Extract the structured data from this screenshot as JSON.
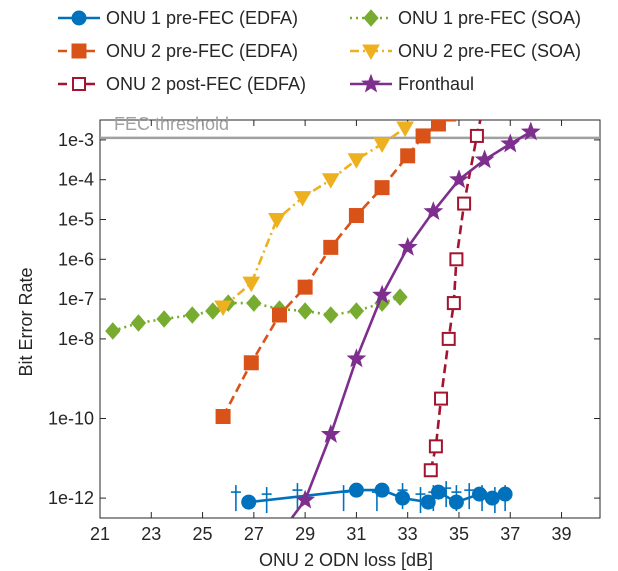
{
  "chart_data": {
    "type": "line",
    "xlabel": "ONU 2 ODN loss [dB]",
    "ylabel": "Bit Error Rate",
    "xlim": [
      21,
      40.5
    ],
    "xticks": [
      21,
      23,
      25,
      27,
      29,
      31,
      33,
      35,
      37,
      39
    ],
    "ylim_log10": [
      -12.5,
      -2.5
    ],
    "yticks": [
      {
        "log": -3,
        "label": "1e-3"
      },
      {
        "log": -4,
        "label": "1e-4"
      },
      {
        "log": -5,
        "label": "1e-5"
      },
      {
        "log": -6,
        "label": "1e-6"
      },
      {
        "log": -7,
        "label": "1e-7"
      },
      {
        "log": -8,
        "label": "1e-8"
      },
      {
        "log": -10,
        "label": "1e-10"
      },
      {
        "log": -12,
        "label": "1e-12"
      }
    ],
    "threshold": {
      "label": "FEC threshold",
      "log10": -2.95,
      "color": "#a0a0a0"
    },
    "legend_placement": "top",
    "series": [
      {
        "name": "ONU 1 pre-FEC (EDFA)",
        "color": "#0072BD",
        "marker": "circle",
        "dash": "solid",
        "x": [
          26.8,
          31.0,
          32.0,
          32.8,
          33.8,
          34.2,
          34.9,
          35.8,
          36.3,
          36.8
        ],
        "log10": [
          -12.1,
          -11.8,
          -11.8,
          -12.0,
          -12.1,
          -11.85,
          -12.1,
          -11.9,
          -12.0,
          -11.9
        ]
      },
      {
        "name": "ONU 1 pre-FEC (SOA)",
        "color": "#77AC30",
        "marker": "diamond",
        "dash": "dotted",
        "x": [
          21.5,
          22.5,
          23.5,
          24.6,
          25.4,
          26.0,
          27.0,
          28.0,
          29.0,
          30.0,
          31.0,
          32.0,
          32.7
        ],
        "log10": [
          -7.8,
          -7.6,
          -7.5,
          -7.4,
          -7.3,
          -7.1,
          -7.1,
          -7.25,
          -7.3,
          -7.4,
          -7.3,
          -7.1,
          -6.95
        ]
      },
      {
        "name": "ONU 2 pre-FEC (EDFA)",
        "color": "#D95319",
        "marker": "square",
        "dash": "dashed",
        "x": [
          25.8,
          26.9,
          28.0,
          29.0,
          30.0,
          31.0,
          32.0,
          33.0,
          33.6,
          34.2,
          34.6,
          35.0
        ],
        "log10": [
          -9.95,
          -8.6,
          -7.4,
          -6.7,
          -5.7,
          -4.9,
          -4.2,
          -3.4,
          -2.9,
          -2.6,
          -2.35,
          -2.1
        ]
      },
      {
        "name": "ONU 2 pre-FEC (SOA)",
        "color": "#EDB120",
        "marker": "triangle-down",
        "dash": "dashdot",
        "x": [
          25.8,
          26.9,
          27.9,
          28.9,
          30.0,
          31.0,
          32.0,
          32.9
        ],
        "log10": [
          -7.2,
          -6.6,
          -5.0,
          -4.45,
          -4.0,
          -3.5,
          -3.1,
          -2.7
        ]
      },
      {
        "name": "ONU 2 post-FEC (EDFA)",
        "color": "#A2142F",
        "marker": "square-open",
        "dash": "dashed",
        "x": [
          33.9,
          34.1,
          34.3,
          34.6,
          34.8,
          34.9,
          35.2,
          35.7,
          36.2
        ],
        "log10": [
          -11.3,
          -10.7,
          -9.5,
          -8.0,
          -7.1,
          -6.0,
          -4.6,
          -2.9,
          -1.4
        ]
      },
      {
        "name": "Fronthaul",
        "color": "#7E2F8E",
        "marker": "star",
        "dash": "solid",
        "x": [
          27.9,
          29.0,
          30.0,
          31.0,
          32.0,
          33.0,
          34.0,
          35.0,
          36.0,
          37.0,
          37.8
        ],
        "log10": [
          -13.0,
          -12.05,
          -10.4,
          -8.5,
          -6.9,
          -5.7,
          -4.8,
          -4.0,
          -3.5,
          -3.1,
          -2.8
        ]
      }
    ],
    "error_markers": {
      "color": "#0072BD",
      "x": [
        26.3,
        27.5,
        28.7,
        30.5,
        31.8,
        32.8,
        33.5,
        34.0,
        34.5,
        34.9,
        35.4,
        35.9,
        36.4,
        36.8
      ],
      "log10": [
        -12.0,
        -12.05,
        -11.95,
        -12.0,
        -12.0,
        -11.95,
        -12.05,
        -12.0,
        -11.9,
        -12.0,
        -11.95,
        -12.0,
        -12.05,
        -12.0
      ]
    }
  }
}
